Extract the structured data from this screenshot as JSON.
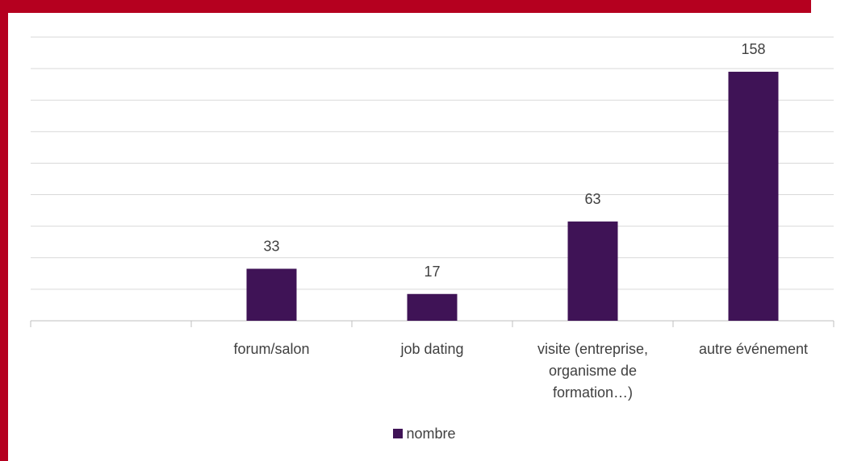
{
  "chart_data": {
    "type": "bar",
    "categories": [
      null,
      "forum/salon",
      "job dating",
      "visite (entreprise, organisme de formation…)",
      "autre événement"
    ],
    "series": [
      {
        "name": "nombre",
        "color": "#3f1356",
        "values": [
          null,
          33,
          17,
          63,
          158
        ]
      }
    ],
    "ylim": [
      0,
      180
    ],
    "yticks": [
      0,
      20,
      40,
      60,
      80,
      100,
      120,
      140,
      160,
      180
    ],
    "grid": true,
    "legend": "bottom"
  }
}
